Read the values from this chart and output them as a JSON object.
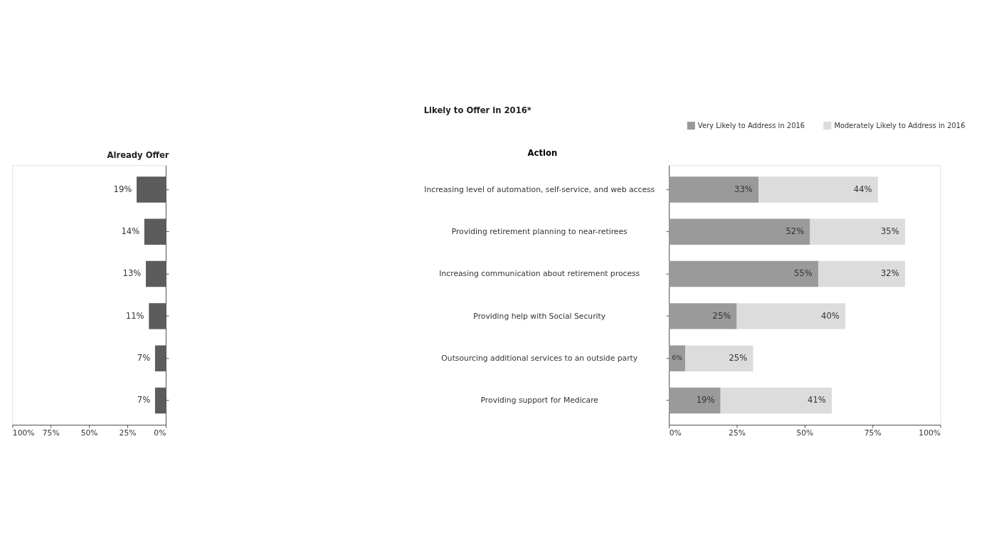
{
  "chart_data": [
    {
      "type": "bar",
      "orientation": "horizontal",
      "title": "Already Offer",
      "categories": [
        null,
        null,
        null,
        null,
        null,
        null
      ],
      "values": [
        19,
        14,
        13,
        11,
        7,
        7
      ],
      "color": "#5c5c5c",
      "xlim": [
        100,
        0
      ],
      "xticks": [
        {
          "value": 100,
          "label": "100%"
        },
        {
          "value": 75,
          "label": "75%"
        },
        {
          "value": 50,
          "label": "50%"
        },
        {
          "value": 25,
          "label": "25%"
        },
        {
          "value": 0,
          "label": "0%"
        }
      ],
      "value_labels": [
        "19%",
        "14%",
        "13%",
        "11%",
        "7%",
        "7%"
      ],
      "tick_labels": "x",
      "grid": false,
      "legend": false
    },
    {
      "type": "bar",
      "orientation": "horizontal",
      "stacked": true,
      "title": "Likely to Offer in 2016*",
      "ylabel": "Action",
      "categories": [
        "Increasing level of automation, self-service, and web access",
        "Providing retirement planning to near-retirees",
        "Increasing communication about retirement process",
        "Providing help with Social Security",
        "Outsourcing additional services to an outside party",
        "Providing support for Medicare"
      ],
      "series": [
        {
          "name": "Very Likely to Address in 2016",
          "color": "#9a9a9a",
          "values": [
            33,
            52,
            55,
            25,
            6,
            19
          ],
          "value_labels": [
            "33%",
            "52%",
            "55%",
            "25%",
            "6%",
            "19%"
          ]
        },
        {
          "name": "Moderately Likely to Address in 2016",
          "color": "#dcdcdc",
          "values": [
            44,
            35,
            32,
            40,
            25,
            41
          ],
          "value_labels": [
            "44%",
            "35%",
            "32%",
            "40%",
            "25%",
            "41%"
          ]
        }
      ],
      "xlim": [
        0,
        100
      ],
      "xticks": [
        {
          "value": 0,
          "label": "0%"
        },
        {
          "value": 25,
          "label": "25%"
        },
        {
          "value": 50,
          "label": "50%"
        },
        {
          "value": 75,
          "label": "75%"
        },
        {
          "value": 100,
          "label": "100%"
        }
      ],
      "grid": false,
      "legend": "top right"
    }
  ]
}
